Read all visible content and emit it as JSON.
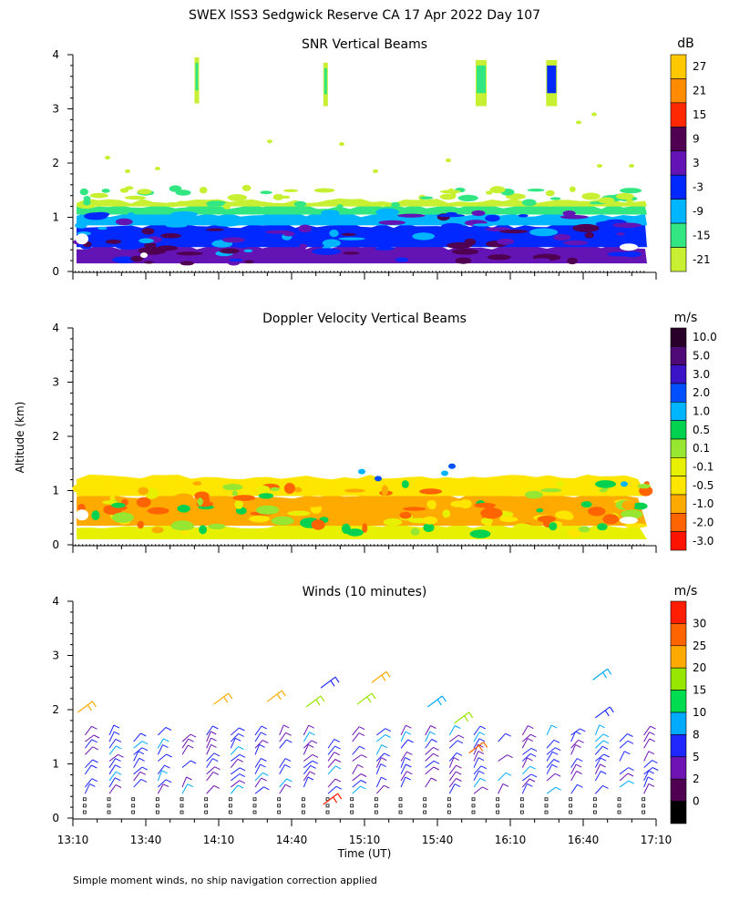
{
  "figure": {
    "title": "SWEX ISS3 Sedgwick Reserve CA  17 Apr 2022 Day 107",
    "ylabel": "Altitude (km)",
    "xlabel": "Time (UT)",
    "footnote": "Simple moment winds, no ship navigation correction applied"
  },
  "chart_data": [
    {
      "type": "heatmap",
      "title": "SNR Vertical Beams",
      "ylabel": "Altitude (km)",
      "xlabel": "Time (UT)",
      "x_ticks": [
        "13:10",
        "13:40",
        "14:10",
        "14:40",
        "15:10",
        "15:40",
        "16:10",
        "16:40",
        "17:10"
      ],
      "y_ticks": [
        "0",
        "1",
        "2",
        "3",
        "4"
      ],
      "ylim": [
        0,
        4
      ],
      "colorbar": {
        "unit": "dB",
        "labels": [
          "27",
          "21",
          "15",
          "9",
          "3",
          "-3",
          "-9",
          "-15",
          "-21"
        ],
        "colors": [
          "#ffc800",
          "#ff8c00",
          "#ff2800",
          "#500050",
          "#6414b4",
          "#0028ff",
          "#00b4ff",
          "#32e682",
          "#c8f032"
        ]
      },
      "layers": [
        {
          "from_km": 0.15,
          "to_km": 0.45,
          "dB": 6
        },
        {
          "from_km": 0.45,
          "to_km": 0.85,
          "dB": 1
        },
        {
          "from_km": 0.85,
          "to_km": 1.05,
          "dB": -7
        },
        {
          "from_km": 1.05,
          "to_km": 1.2,
          "dB": -14
        },
        {
          "from_km": 1.2,
          "to_km": 1.3,
          "dB": -20
        }
      ],
      "echo_columns": [
        {
          "time": "14:01",
          "bottom_km": 3.1,
          "top_km": 3.95
        },
        {
          "time": "14:54",
          "bottom_km": 3.05,
          "top_km": 3.85
        },
        {
          "time": "15:58",
          "bottom_km": 3.05,
          "top_km": 3.9
        },
        {
          "time": "16:27",
          "bottom_km": 3.05,
          "top_km": 3.9
        }
      ]
    },
    {
      "type": "heatmap",
      "title": "Doppler Velocity Vertical Beams",
      "ylabel": "Altitude (km)",
      "xlabel": "Time (UT)",
      "x_ticks": [
        "13:10",
        "13:40",
        "14:10",
        "14:40",
        "15:10",
        "15:40",
        "16:10",
        "16:40",
        "17:10"
      ],
      "y_ticks": [
        "0",
        "1",
        "2",
        "3",
        "4"
      ],
      "ylim": [
        0,
        4
      ],
      "colorbar": {
        "unit": "m/s",
        "labels": [
          "10.0",
          "5.0",
          "3.0",
          "2.0",
          "1.0",
          "0.5",
          "0.1",
          "-0.1",
          "-0.5",
          "-1.0",
          "-2.0",
          "-3.0"
        ],
        "colors": [
          "#280028",
          "#500a78",
          "#3c14c8",
          "#0050ff",
          "#00b4ff",
          "#00d250",
          "#96e632",
          "#e6f000",
          "#ffe600",
          "#ffaa00",
          "#ff6400",
          "#ff1400"
        ]
      },
      "layers": [
        {
          "from_km": 0.1,
          "to_km": 0.35,
          "m_s": 0.0
        },
        {
          "from_km": 0.35,
          "to_km": 0.9,
          "m_s": -0.7
        },
        {
          "from_km": 0.9,
          "to_km": 1.25,
          "m_s": -0.2
        }
      ]
    },
    {
      "type": "scatter",
      "title": "Winds (10 minutes)",
      "ylabel": "Altitude (km)",
      "xlabel": "Time (UT)",
      "x_ticks": [
        "13:10",
        "13:40",
        "14:10",
        "14:40",
        "15:10",
        "15:40",
        "16:10",
        "16:40",
        "17:10"
      ],
      "y_ticks": [
        "0",
        "1",
        "2",
        "3",
        "4"
      ],
      "ylim": [
        0,
        4
      ],
      "colorbar": {
        "unit": "m/s",
        "labels": [
          "30",
          "25",
          "20",
          "15",
          "10",
          "8",
          "5",
          "2",
          "0"
        ],
        "colors": [
          "#ff1e00",
          "#ff6400",
          "#ffaa00",
          "#96e600",
          "#00dc50",
          "#00aaff",
          "#1e28ff",
          "#6e14b4",
          "#500050",
          "#000000"
        ]
      },
      "profile_times": [
        "13:15",
        "13:25",
        "13:35",
        "13:45",
        "13:55",
        "14:05",
        "14:15",
        "14:25",
        "14:35",
        "14:45",
        "14:55",
        "15:05",
        "15:15",
        "15:25",
        "15:35",
        "15:45",
        "15:55",
        "16:05",
        "16:15",
        "16:25",
        "16:35",
        "16:45",
        "16:55",
        "17:05"
      ],
      "typical_speed_m_s": {
        "0-0.5 km": 1,
        "0.5-1.5 km": 5,
        "1.5-2.6 km": 20
      }
    }
  ]
}
